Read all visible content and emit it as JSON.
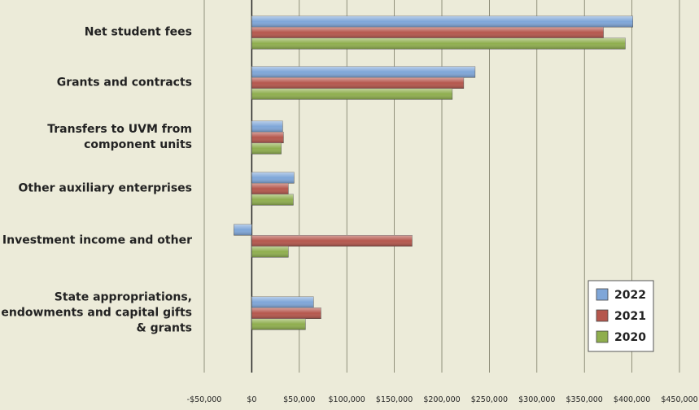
{
  "chart_data": {
    "type": "bar",
    "orientation": "horizontal",
    "categories": [
      "Net student fees",
      "Grants and contracts",
      "Transfers to UVM from component units",
      "Other auxiliary enterprises",
      "Investment income and other",
      "State appropriations, endowments and capital gifts & grants"
    ],
    "series": [
      {
        "name": "2022",
        "color": "#7fa6d8",
        "values": [
          401000,
          235000,
          32500,
          44500,
          -18800,
          65000
        ]
      },
      {
        "name": "2021",
        "color": "#b5574d",
        "values": [
          370000,
          223000,
          33400,
          38500,
          168700,
          72800
        ]
      },
      {
        "name": "2020",
        "color": "#8fae4e",
        "values": [
          393000,
          211000,
          31000,
          43700,
          38500,
          56500
        ]
      }
    ],
    "xlim": [
      -50000,
      450000
    ],
    "xticks": [
      {
        "value": -50000,
        "label": "-$50,000"
      },
      {
        "value": 0,
        "label": "$0"
      },
      {
        "value": 50000,
        "label": "$50,000"
      },
      {
        "value": 100000,
        "label": "$100,000"
      },
      {
        "value": 150000,
        "label": "$150,000"
      },
      {
        "value": 200000,
        "label": "$200,000"
      },
      {
        "value": 250000,
        "label": "$250,000"
      },
      {
        "value": 300000,
        "label": "$300,000"
      },
      {
        "value": 350000,
        "label": "$350,000"
      },
      {
        "value": 400000,
        "label": "$400,000"
      },
      {
        "value": 450000,
        "label": "$450,000"
      }
    ],
    "grid": true,
    "legend": "lower right"
  }
}
